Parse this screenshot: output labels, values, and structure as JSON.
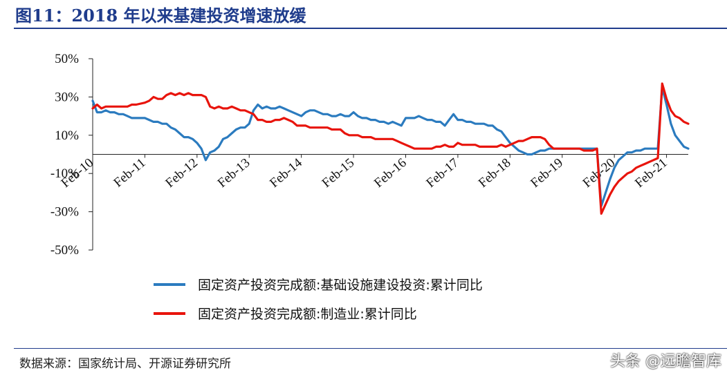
{
  "title": "图11：2018 年以来基建投资增速放缓",
  "source": "数据来源：国家统计局、开源证券研究所",
  "watermark": "头条 @远瞻智库",
  "chart_data": {
    "type": "line",
    "ylim": [
      -50,
      50
    ],
    "yticks": [
      "50%",
      "30%",
      "10%",
      "-10%",
      "-30%",
      "-50%"
    ],
    "ytick_values": [
      50,
      30,
      10,
      -10,
      -30,
      -50
    ],
    "x_tick_labels": [
      "Feb-10",
      "Feb-11",
      "Feb-12",
      "Feb-13",
      "Feb-14",
      "Feb-15",
      "Feb-16",
      "Feb-17",
      "Feb-18",
      "Feb-19",
      "Feb-20",
      "Feb-21"
    ],
    "x_range": [
      "Feb-10",
      "Sep-21"
    ],
    "legend_position": "bottom",
    "series": [
      {
        "name": "固定资产投资完成额:基础设施建设投资:累计同比",
        "color": "#2b7bbf",
        "points": [
          [
            0,
            28
          ],
          [
            1,
            22
          ],
          [
            2,
            22
          ],
          [
            3,
            23
          ],
          [
            4,
            22
          ],
          [
            5,
            22
          ],
          [
            6,
            21
          ],
          [
            7,
            21
          ],
          [
            8,
            20
          ],
          [
            9,
            19
          ],
          [
            10,
            19
          ],
          [
            12,
            19
          ],
          [
            13,
            18
          ],
          [
            14,
            17
          ],
          [
            15,
            17
          ],
          [
            16,
            16
          ],
          [
            17,
            16
          ],
          [
            18,
            14
          ],
          [
            19,
            13
          ],
          [
            20,
            11
          ],
          [
            21,
            9
          ],
          [
            22,
            9
          ],
          [
            23,
            8
          ],
          [
            24,
            6
          ],
          [
            25,
            3
          ],
          [
            26,
            -3
          ],
          [
            27,
            1
          ],
          [
            28,
            2
          ],
          [
            29,
            4
          ],
          [
            30,
            8
          ],
          [
            31,
            9
          ],
          [
            32,
            11
          ],
          [
            33,
            13
          ],
          [
            34,
            14
          ],
          [
            35,
            14
          ],
          [
            36,
            16
          ],
          [
            37,
            23
          ],
          [
            38,
            26
          ],
          [
            39,
            24
          ],
          [
            40,
            25
          ],
          [
            41,
            24
          ],
          [
            42,
            24
          ],
          [
            43,
            25
          ],
          [
            44,
            24
          ],
          [
            45,
            23
          ],
          [
            46,
            22
          ],
          [
            47,
            21
          ],
          [
            48,
            20
          ],
          [
            49,
            22
          ],
          [
            50,
            23
          ],
          [
            51,
            23
          ],
          [
            52,
            22
          ],
          [
            53,
            21
          ],
          [
            54,
            21
          ],
          [
            55,
            20
          ],
          [
            56,
            20
          ],
          [
            57,
            21
          ],
          [
            58,
            20
          ],
          [
            59,
            20
          ],
          [
            60,
            22
          ],
          [
            61,
            20
          ],
          [
            62,
            19
          ],
          [
            63,
            19
          ],
          [
            64,
            18
          ],
          [
            65,
            18
          ],
          [
            66,
            17
          ],
          [
            67,
            17
          ],
          [
            68,
            16
          ],
          [
            69,
            17
          ],
          [
            70,
            16
          ],
          [
            71,
            15
          ],
          [
            72,
            19
          ],
          [
            73,
            19
          ],
          [
            74,
            19
          ],
          [
            75,
            20
          ],
          [
            76,
            19
          ],
          [
            77,
            18
          ],
          [
            78,
            18
          ],
          [
            79,
            17
          ],
          [
            80,
            17
          ],
          [
            81,
            15
          ],
          [
            82,
            18
          ],
          [
            83,
            21
          ],
          [
            84,
            18
          ],
          [
            85,
            18
          ],
          [
            86,
            17
          ],
          [
            87,
            17
          ],
          [
            88,
            16
          ],
          [
            89,
            16
          ],
          [
            90,
            16
          ],
          [
            91,
            15
          ],
          [
            92,
            15
          ],
          [
            93,
            13
          ],
          [
            94,
            12
          ],
          [
            95,
            9
          ],
          [
            96,
            6
          ],
          [
            97,
            4
          ],
          [
            98,
            2
          ],
          [
            99,
            1
          ],
          [
            100,
            0
          ],
          [
            101,
            0
          ],
          [
            102,
            1
          ],
          [
            103,
            2
          ],
          [
            104,
            2
          ],
          [
            105,
            3
          ],
          [
            106,
            3
          ],
          [
            107,
            3
          ],
          [
            108,
            3
          ],
          [
            109,
            3
          ],
          [
            110,
            3
          ],
          [
            111,
            3
          ],
          [
            112,
            3
          ],
          [
            113,
            3
          ],
          [
            114,
            3
          ],
          [
            115,
            3
          ],
          [
            116,
            3
          ],
          [
            117,
            -27
          ],
          [
            118,
            -20
          ],
          [
            119,
            -13
          ],
          [
            120,
            -7
          ],
          [
            121,
            -3
          ],
          [
            122,
            -1
          ],
          [
            123,
            1
          ],
          [
            124,
            1
          ],
          [
            125,
            2
          ],
          [
            126,
            2
          ],
          [
            127,
            3
          ],
          [
            128,
            3
          ],
          [
            129,
            3
          ],
          [
            130,
            3
          ],
          [
            131,
            35
          ],
          [
            132,
            26
          ],
          [
            133,
            16
          ],
          [
            134,
            10
          ],
          [
            135,
            7
          ],
          [
            136,
            4
          ],
          [
            137,
            3
          ]
        ]
      },
      {
        "name": "固定资产投资完成额:制造业:累计同比",
        "color": "#e8140c",
        "points": [
          [
            0,
            24
          ],
          [
            1,
            26
          ],
          [
            2,
            24
          ],
          [
            3,
            25
          ],
          [
            4,
            25
          ],
          [
            5,
            25
          ],
          [
            6,
            25
          ],
          [
            7,
            25
          ],
          [
            8,
            25
          ],
          [
            9,
            26
          ],
          [
            10,
            26
          ],
          [
            12,
            27
          ],
          [
            13,
            28
          ],
          [
            14,
            30
          ],
          [
            15,
            29
          ],
          [
            16,
            29
          ],
          [
            17,
            31
          ],
          [
            18,
            32
          ],
          [
            19,
            31
          ],
          [
            20,
            32
          ],
          [
            21,
            31
          ],
          [
            22,
            32
          ],
          [
            23,
            31
          ],
          [
            24,
            31
          ],
          [
            25,
            31
          ],
          [
            26,
            30
          ],
          [
            27,
            25
          ],
          [
            28,
            24
          ],
          [
            29,
            25
          ],
          [
            30,
            24
          ],
          [
            31,
            24
          ],
          [
            32,
            25
          ],
          [
            33,
            24
          ],
          [
            34,
            23
          ],
          [
            35,
            23
          ],
          [
            36,
            22
          ],
          [
            37,
            21
          ],
          [
            38,
            18
          ],
          [
            39,
            18
          ],
          [
            40,
            17
          ],
          [
            41,
            17
          ],
          [
            42,
            18
          ],
          [
            43,
            18
          ],
          [
            44,
            19
          ],
          [
            45,
            18
          ],
          [
            46,
            17
          ],
          [
            47,
            15
          ],
          [
            48,
            15
          ],
          [
            49,
            15
          ],
          [
            50,
            14
          ],
          [
            51,
            14
          ],
          [
            52,
            14
          ],
          [
            53,
            14
          ],
          [
            54,
            14
          ],
          [
            55,
            13
          ],
          [
            56,
            13
          ],
          [
            57,
            13
          ],
          [
            58,
            11
          ],
          [
            59,
            10
          ],
          [
            60,
            10
          ],
          [
            61,
            10
          ],
          [
            62,
            9
          ],
          [
            63,
            9
          ],
          [
            64,
            9
          ],
          [
            65,
            8
          ],
          [
            66,
            8
          ],
          [
            67,
            8
          ],
          [
            68,
            8
          ],
          [
            69,
            8
          ],
          [
            70,
            7
          ],
          [
            71,
            6
          ],
          [
            72,
            5
          ],
          [
            73,
            4
          ],
          [
            74,
            3
          ],
          [
            75,
            3
          ],
          [
            76,
            3
          ],
          [
            77,
            3
          ],
          [
            78,
            3
          ],
          [
            79,
            4
          ],
          [
            80,
            4
          ],
          [
            81,
            5
          ],
          [
            82,
            4
          ],
          [
            83,
            4
          ],
          [
            84,
            6
          ],
          [
            85,
            5
          ],
          [
            86,
            5
          ],
          [
            87,
            5
          ],
          [
            88,
            5
          ],
          [
            89,
            4
          ],
          [
            90,
            4
          ],
          [
            91,
            4
          ],
          [
            92,
            4
          ],
          [
            93,
            4
          ],
          [
            94,
            5
          ],
          [
            95,
            4
          ],
          [
            96,
            5
          ],
          [
            97,
            6
          ],
          [
            98,
            7
          ],
          [
            99,
            7
          ],
          [
            100,
            8
          ],
          [
            101,
            9
          ],
          [
            102,
            9
          ],
          [
            103,
            9
          ],
          [
            104,
            8
          ],
          [
            105,
            5
          ],
          [
            106,
            3
          ],
          [
            107,
            3
          ],
          [
            108,
            3
          ],
          [
            109,
            3
          ],
          [
            110,
            3
          ],
          [
            111,
            3
          ],
          [
            112,
            3
          ],
          [
            113,
            2
          ],
          [
            114,
            2
          ],
          [
            115,
            2
          ],
          [
            116,
            3
          ],
          [
            117,
            -31
          ],
          [
            118,
            -26
          ],
          [
            119,
            -21
          ],
          [
            120,
            -17
          ],
          [
            121,
            -14
          ],
          [
            122,
            -12
          ],
          [
            123,
            -10
          ],
          [
            124,
            -9
          ],
          [
            125,
            -7
          ],
          [
            126,
            -6
          ],
          [
            127,
            -5
          ],
          [
            128,
            -4
          ],
          [
            129,
            -3
          ],
          [
            130,
            -2
          ],
          [
            131,
            37
          ],
          [
            132,
            29
          ],
          [
            133,
            23
          ],
          [
            134,
            20
          ],
          [
            135,
            19
          ],
          [
            136,
            17
          ],
          [
            137,
            16
          ]
        ]
      }
    ]
  }
}
